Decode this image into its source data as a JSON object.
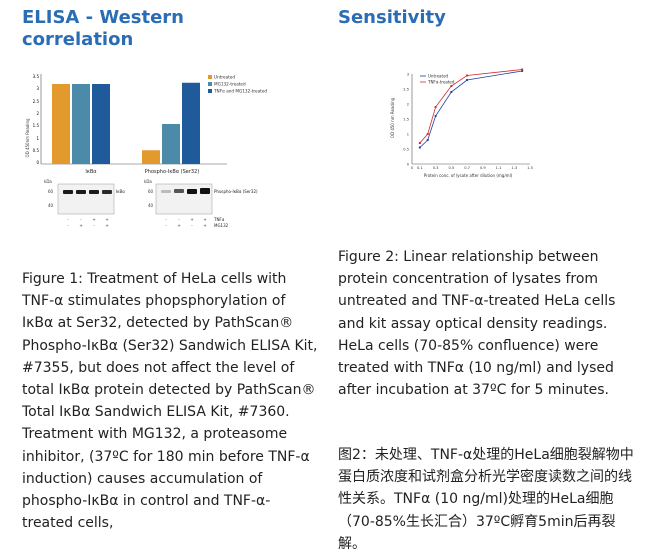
{
  "left": {
    "title": "ELISA - Western correlation",
    "caption": "Figure 1: Treatment of HeLa cells with TNF-α stimulates phopsphorylation of IκBα at Ser32, detected by PathScan® Phospho-IκBα (Ser32) Sandwich ELISA Kit, #7355, but does not affect the level of total IκBα protein detected by PathScan® Total IκBα Sandwich ELISA Kit, #7360. Treatment with MG132, a proteasome inhibitor, (37ºC for 180 min before TNF-α induction) causes accumulation of phospho-IκBα in control and TNF-α-treated cells,",
    "figure": {
      "ylabel": "OD 450nm Reading",
      "ticks": [
        "3.5",
        "3",
        "2.5",
        "2",
        "1.5",
        "1",
        "0.5",
        "0"
      ],
      "legend": [
        "Untreated",
        "MG132-treated",
        "TNFα and MG132-treated"
      ],
      "group_labels": [
        "IκBα",
        "Phospho-IκBα (Ser32)"
      ],
      "total_values": [
        3.2,
        3.2,
        3.2
      ],
      "phospho_values": [
        0.55,
        1.6,
        3.25
      ],
      "blot_kda": "kDa",
      "blot_markers": [
        "60",
        "40"
      ],
      "blot_labels": [
        "IκBα",
        "Phospho-IκBα (Ser32)"
      ],
      "treat_rows": [
        "TNFα",
        "MG132"
      ],
      "colors": {
        "untreated": "#e39a2d",
        "mg132": "#4b8aa8",
        "tnf": "#1f5a9a"
      }
    }
  },
  "right": {
    "title": "Sensitivity",
    "caption": "Figure 2: Linear relationship between protein concentration of lysates from untreated and TNF-α-treated HeLa cells and kit assay optical density readings. HeLa cells (70-85% confluence) were treated with TNFα (10 ng/ml) and lysed after incubation at 37ºC for 5 minutes.",
    "caption_cn": "图2：未处理、TNF-α处理的HeLa细胞裂解物中蛋白质浓度和试剂盒分析光学密度读数之间的线性关系。TNFα (10 ng/ml)处理的HeLa细胞（70-85%生长汇合）37ºC孵育5min后再裂解。",
    "chart_data": {
      "type": "line",
      "xlabel": "Protein conc. of lysate after dilution (mg/ml)",
      "ylabel": "OD 450 nm Reading",
      "x_ticks": [
        "0",
        "0.1",
        "0.3",
        "0.5",
        "0.7",
        "0.9",
        "1.1",
        "1.3",
        "1.5"
      ],
      "y_ticks": [
        "3",
        "2.5",
        "2",
        "1.5",
        "1",
        "0.5",
        "0"
      ],
      "xlim": [
        0,
        1.5
      ],
      "ylim": [
        0,
        3
      ],
      "series": [
        {
          "name": "Untreated",
          "x": [
            0.1,
            0.2,
            0.3,
            0.5,
            0.7,
            1.4
          ],
          "y": [
            0.55,
            0.8,
            1.6,
            2.4,
            2.8,
            3.1
          ]
        },
        {
          "name": "TNFα-treated",
          "x": [
            0.1,
            0.2,
            0.3,
            0.5,
            0.7,
            1.4
          ],
          "y": [
            0.7,
            1.0,
            1.9,
            2.6,
            2.95,
            3.15
          ]
        }
      ],
      "colors": {
        "untreated": "#1f3fa5",
        "tnf": "#d42a2a"
      },
      "legend_position": "top-left"
    }
  }
}
